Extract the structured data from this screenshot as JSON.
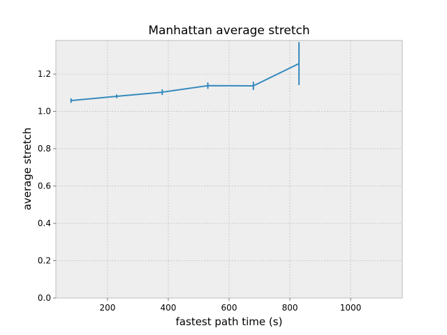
{
  "chart_data": {
    "type": "line",
    "title": "Manhattan average stretch",
    "xlabel": "fastest path time (s)",
    "ylabel": "average stretch",
    "xlim": [
      30,
      1170
    ],
    "ylim": [
      0,
      1.38
    ],
    "xticks": [
      200,
      400,
      600,
      800,
      1000
    ],
    "xtick_labels": [
      "200",
      "400",
      "600",
      "800",
      "1000"
    ],
    "yticks": [
      0.0,
      0.2,
      0.4,
      0.6,
      0.8,
      1.0,
      1.2
    ],
    "ytick_labels": [
      "0.0",
      "0.2",
      "0.4",
      "0.6",
      "0.8",
      "1.0",
      "1.2"
    ],
    "grid": true,
    "series": [
      {
        "x": [
          80,
          230,
          380,
          530,
          680,
          830
        ],
        "y": [
          1.058,
          1.081,
          1.103,
          1.138,
          1.137,
          1.256
        ],
        "err": [
          0.012,
          0.01,
          0.015,
          0.017,
          0.022,
          0.115
        ],
        "color": "#348abd"
      }
    ],
    "background_color": "#eeeeee",
    "grid_color": "#b2b2b2"
  }
}
